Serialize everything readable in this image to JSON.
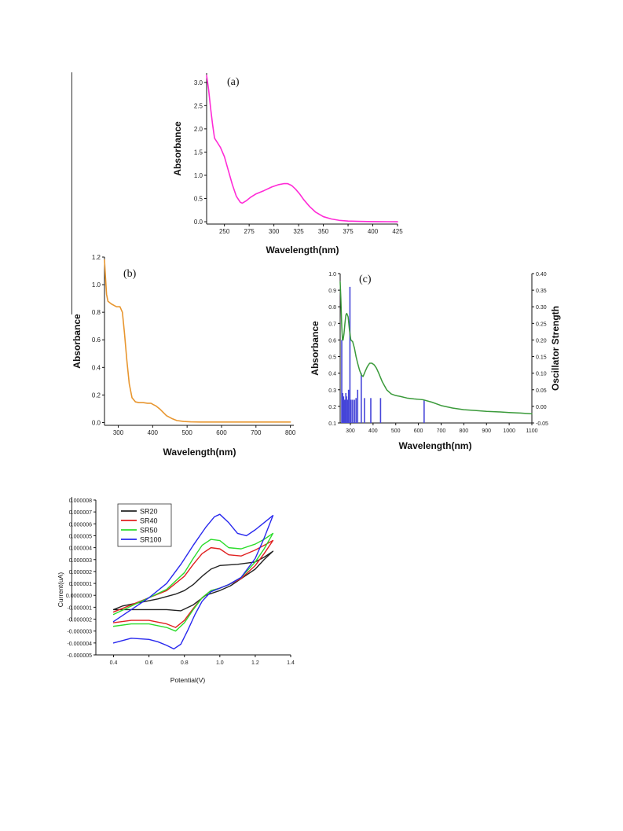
{
  "chart_data": [
    {
      "id": "a",
      "type": "line",
      "panel_label": "(a)",
      "xlabel": "Wavelength(nm)",
      "ylabel": "Absorbance",
      "xlim": [
        232,
        425
      ],
      "ylim": [
        -0.05,
        3.2
      ],
      "xticks": [
        250,
        275,
        300,
        325,
        350,
        375,
        400,
        425
      ],
      "yticks": [
        0.0,
        0.5,
        1.0,
        1.5,
        2.0,
        2.5,
        3.0
      ],
      "ytick_labels": [
        "0.0",
        "0.5",
        "1.0",
        "1.5",
        "2.0",
        "2.5",
        "3.0"
      ],
      "color": "#ff2bd6",
      "series": [
        {
          "x": [
            232,
            234,
            236,
            238,
            240,
            243,
            246,
            250,
            254,
            258,
            262,
            266,
            268,
            272,
            276,
            282,
            290,
            298,
            305,
            310,
            314,
            318,
            322,
            326,
            330,
            336,
            342,
            350,
            358,
            366,
            375,
            385,
            395,
            405,
            415,
            425
          ],
          "y": [
            3.15,
            2.85,
            2.45,
            2.1,
            1.8,
            1.7,
            1.6,
            1.4,
            1.1,
            0.8,
            0.55,
            0.42,
            0.4,
            0.45,
            0.52,
            0.6,
            0.67,
            0.75,
            0.8,
            0.82,
            0.82,
            0.78,
            0.7,
            0.6,
            0.48,
            0.33,
            0.21,
            0.11,
            0.06,
            0.03,
            0.015,
            0.008,
            0.004,
            0.002,
            0.001,
            0.0
          ]
        }
      ]
    },
    {
      "id": "b",
      "type": "line",
      "panel_label": "(b)",
      "xlabel": "Wavelength(nm)",
      "ylabel": "Absorbance",
      "xlim": [
        260,
        810
      ],
      "ylim": [
        -0.02,
        1.2
      ],
      "xticks": [
        300,
        400,
        500,
        600,
        700,
        800
      ],
      "yticks": [
        0.0,
        0.2,
        0.4,
        0.6,
        0.8,
        1.0,
        1.2
      ],
      "ytick_labels": [
        "0.0",
        "0.2",
        "0.4",
        "0.6",
        "0.8",
        "1.0",
        "1.2"
      ],
      "color": "#e8962f",
      "series": [
        {
          "x": [
            260,
            263,
            266,
            270,
            280,
            295,
            305,
            312,
            318,
            325,
            332,
            340,
            350,
            360,
            372,
            385,
            395,
            402,
            410,
            420,
            430,
            440,
            455,
            470,
            490,
            510,
            540,
            580,
            630,
            680,
            730,
            780,
            800
          ],
          "y": [
            1.18,
            1.05,
            0.93,
            0.88,
            0.86,
            0.84,
            0.84,
            0.8,
            0.65,
            0.45,
            0.28,
            0.18,
            0.15,
            0.145,
            0.145,
            0.14,
            0.14,
            0.13,
            0.12,
            0.1,
            0.075,
            0.05,
            0.03,
            0.015,
            0.008,
            0.005,
            0.004,
            0.004,
            0.004,
            0.004,
            0.004,
            0.004,
            0.004
          ]
        }
      ]
    },
    {
      "id": "c",
      "type": "line",
      "panel_label": "(c)",
      "xlabel": "Wavelength(nm)",
      "ylabel": "Absorbance",
      "y2label": "Oscillator Strength",
      "xlim": [
        255,
        1100
      ],
      "xticks": [
        300,
        400,
        500,
        600,
        700,
        800,
        900,
        1000,
        1100
      ],
      "ylim": [
        0.1,
        1.0
      ],
      "yticks": [
        0.1,
        0.2,
        0.3,
        0.4,
        0.5,
        0.6,
        0.7,
        0.8,
        0.9,
        1.0
      ],
      "ytick_labels": [
        "0.1",
        "0.2",
        "0.3",
        "0.4",
        "0.5",
        "0.6",
        "0.7",
        "0.8",
        "0.9",
        "1.0"
      ],
      "y2lim": [
        -0.05,
        0.4
      ],
      "y2ticks": [
        -0.05,
        0.0,
        0.05,
        0.1,
        0.15,
        0.2,
        0.25,
        0.3,
        0.35,
        0.4
      ],
      "y2tick_labels": [
        "-0.05",
        "0.00",
        "0.05",
        "0.10",
        "0.15",
        "0.20",
        "0.25",
        "0.30",
        "0.35",
        "0.40"
      ],
      "color": "#3a9a3a",
      "bar_color": "#4545d8",
      "series": [
        {
          "name": "Absorbance",
          "x": [
            255,
            258,
            262,
            265,
            268,
            272,
            276,
            280,
            284,
            290,
            296,
            302,
            310,
            318,
            325,
            332,
            340,
            348,
            356,
            365,
            375,
            385,
            395,
            405,
            415,
            425,
            440,
            460,
            480,
            500,
            520,
            550,
            580,
            620,
            660,
            700,
            750,
            800,
            850,
            900,
            950,
            1000,
            1050,
            1100
          ],
          "y": [
            0.95,
            0.85,
            0.68,
            0.6,
            0.6,
            0.64,
            0.7,
            0.75,
            0.76,
            0.74,
            0.66,
            0.6,
            0.59,
            0.55,
            0.5,
            0.46,
            0.42,
            0.39,
            0.38,
            0.41,
            0.44,
            0.46,
            0.46,
            0.45,
            0.43,
            0.4,
            0.35,
            0.3,
            0.275,
            0.265,
            0.26,
            0.25,
            0.245,
            0.24,
            0.225,
            0.205,
            0.19,
            0.18,
            0.175,
            0.17,
            0.167,
            0.163,
            0.16,
            0.155
          ]
        }
      ],
      "oscillator_bars": {
        "x": [
          262,
          266,
          270,
          275,
          280,
          283,
          288,
          292,
          298,
          303,
          310,
          318,
          325,
          332,
          348,
          362,
          390,
          433,
          625
        ],
        "y": [
          0.2,
          0.04,
          0.03,
          0.02,
          0.04,
          0.03,
          0.02,
          0.05,
          0.36,
          0.02,
          0.02,
          0.02,
          0.025,
          0.05,
          0.1,
          0.025,
          0.025,
          0.025,
          0.02
        ]
      }
    },
    {
      "id": "d",
      "type": "line",
      "xlabel": "Potential(V)",
      "ylabel": "Current(uA)",
      "xlim": [
        0.3,
        1.4
      ],
      "xticks": [
        0.4,
        0.6,
        0.8,
        1.0,
        1.2,
        1.4
      ],
      "xtick_labels": [
        "0.4",
        "0.6",
        "0.8",
        "1.0",
        "1.2",
        "1.4"
      ],
      "ylim": [
        -5e-06,
        8e-06
      ],
      "yticks": [
        -5e-06,
        -4e-06,
        -3e-06,
        -2e-06,
        -1e-06,
        0.0,
        1e-06,
        2e-06,
        3e-06,
        4e-06,
        5e-06,
        6e-06,
        7e-06,
        8e-06
      ],
      "ytick_labels": [
        "-0.000005",
        "-0.000004",
        "-0.000003",
        "-0.000002",
        "-0.000001",
        "0.0000000",
        "0.000001",
        "0.000002",
        "0.000003",
        "0.000004",
        "0.000005",
        "0.000006",
        "0.000007",
        "0.000008"
      ],
      "legend_position": "top-left",
      "series": [
        {
          "name": "SR20",
          "color": "#222222",
          "x": [
            0.4,
            0.5,
            0.6,
            0.7,
            0.78,
            0.85,
            0.92,
            1.0,
            1.06,
            1.12,
            1.2,
            1.25,
            1.3,
            1.25,
            1.2,
            1.1,
            1.0,
            0.95,
            0.9,
            0.85,
            0.8,
            0.75,
            0.65,
            0.55,
            0.45,
            0.4
          ],
          "y": [
            -1.2e-06,
            -1.2e-06,
            -1.2e-06,
            -1.2e-06,
            -1.3e-06,
            -8e-07,
            0.0,
            4e-07,
            8e-07,
            1.4e-06,
            2.2e-06,
            3e-06,
            3.7e-06,
            3.2e-06,
            2.8e-06,
            2.6e-06,
            2.5e-06,
            2.2e-06,
            1.6e-06,
            9e-07,
            4e-07,
            1e-07,
            -3e-07,
            -6e-07,
            -9e-07,
            -1.2e-06
          ]
        },
        {
          "name": "SR40",
          "color": "#e02020",
          "x": [
            0.4,
            0.5,
            0.6,
            0.7,
            0.75,
            0.8,
            0.85,
            0.9,
            0.95,
            1.0,
            1.05,
            1.12,
            1.2,
            1.25,
            1.3,
            1.25,
            1.2,
            1.12,
            1.05,
            1.0,
            0.95,
            0.9,
            0.85,
            0.8,
            0.7,
            0.6,
            0.5,
            0.4
          ],
          "y": [
            -2.3e-06,
            -2.1e-06,
            -2.1e-06,
            -2.4e-06,
            -2.7e-06,
            -2.1e-06,
            -1.1e-06,
            -2e-07,
            4e-07,
            6e-07,
            9e-07,
            1.4e-06,
            2.5e-06,
            3.5e-06,
            4.6e-06,
            4.2e-06,
            3.8e-06,
            3.3e-06,
            3.4e-06,
            3.9e-06,
            4e-06,
            3.5e-06,
            2.6e-06,
            1.6e-06,
            4e-07,
            -2e-07,
            -8e-07,
            -1.4e-06
          ]
        },
        {
          "name": "SR50",
          "color": "#2cdc2c",
          "x": [
            0.4,
            0.5,
            0.6,
            0.7,
            0.75,
            0.8,
            0.85,
            0.9,
            0.95,
            1.0,
            1.05,
            1.12,
            1.2,
            1.25,
            1.3,
            1.25,
            1.2,
            1.12,
            1.05,
            1.0,
            0.95,
            0.9,
            0.85,
            0.8,
            0.7,
            0.6,
            0.5,
            0.4
          ],
          "y": [
            -2.6e-06,
            -2.4e-06,
            -2.4e-06,
            -2.7e-06,
            -3e-06,
            -2.3e-06,
            -1.2e-06,
            -2e-07,
            4e-07,
            6e-07,
            9e-07,
            1.5e-06,
            2.8e-06,
            3.9e-06,
            5.2e-06,
            4.7e-06,
            4.3e-06,
            3.9e-06,
            4e-06,
            4.6e-06,
            4.7e-06,
            4.2e-06,
            3.1e-06,
            1.9e-06,
            5e-07,
            -2e-07,
            -9e-07,
            -1.6e-06
          ]
        },
        {
          "name": "SR100",
          "color": "#2828ee",
          "x": [
            0.4,
            0.5,
            0.6,
            0.65,
            0.7,
            0.74,
            0.78,
            0.82,
            0.86,
            0.9,
            0.95,
            1.0,
            1.05,
            1.12,
            1.2,
            1.25,
            1.3,
            1.25,
            1.2,
            1.15,
            1.1,
            1.05,
            1.0,
            0.97,
            0.92,
            0.85,
            0.78,
            0.7,
            0.6,
            0.5,
            0.4
          ],
          "y": [
            -4e-06,
            -3.6e-06,
            -3.7e-06,
            -3.9e-06,
            -4.2e-06,
            -4.5e-06,
            -4.1e-06,
            -2.9e-06,
            -1.6e-06,
            -5e-07,
            3e-07,
            6e-07,
            9e-07,
            1.5e-06,
            3.1e-06,
            4.8e-06,
            6.7e-06,
            6.1e-06,
            5.5e-06,
            5e-06,
            5.2e-06,
            6.1e-06,
            6.8e-06,
            6.6e-06,
            5.7e-06,
            4.2e-06,
            2.6e-06,
            1e-06,
            -2e-07,
            -1.2e-06,
            -2.2e-06
          ]
        }
      ]
    }
  ]
}
